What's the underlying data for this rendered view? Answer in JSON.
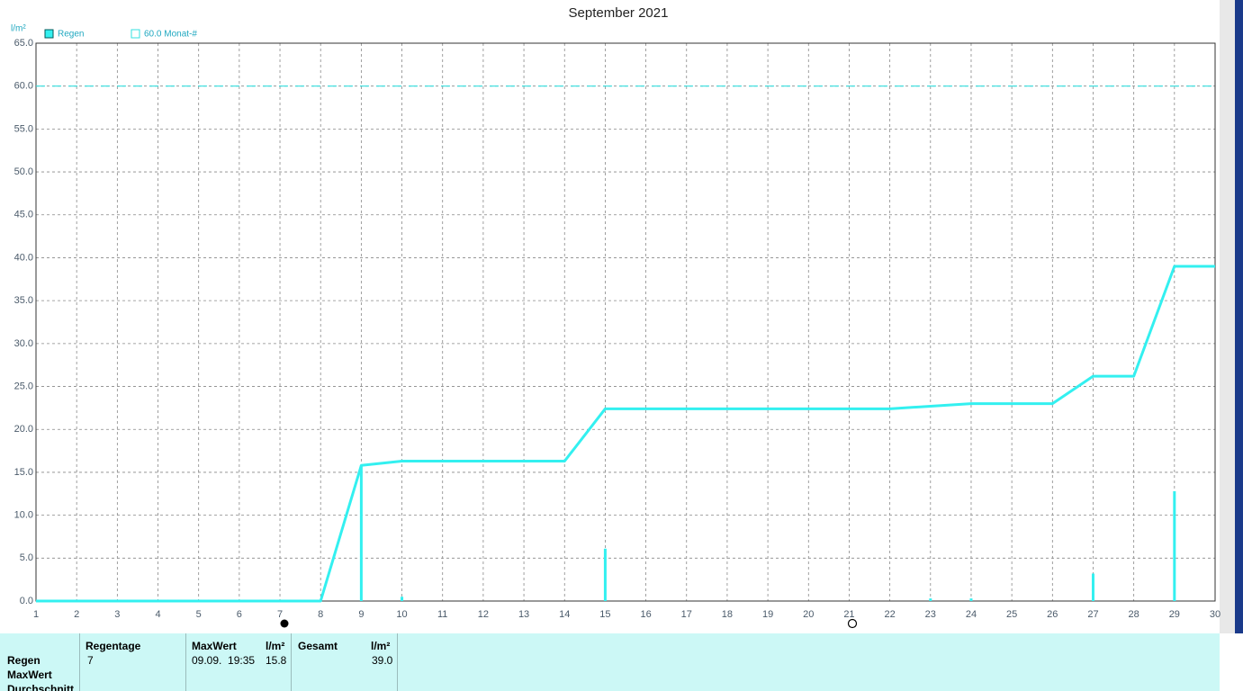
{
  "chart_data": {
    "type": "rain",
    "title": "September 2021",
    "y_label": "l/m²",
    "series": [
      {
        "name": "Regen",
        "color": "#33f0f0",
        "x": [
          9,
          10,
          15,
          23,
          24,
          27,
          29
        ],
        "values": [
          15.8,
          0.5,
          6.1,
          0.3,
          0.3,
          3.2,
          12.8
        ]
      },
      {
        "name": "60.0 Monat-#",
        "color": "#33e0e0",
        "value": 60
      }
    ],
    "line": {
      "color": "#33f0f0",
      "x": [
        1,
        2,
        3,
        4,
        5,
        6,
        7,
        8,
        9,
        10,
        11,
        12,
        13,
        14,
        15,
        16,
        17,
        18,
        19,
        20,
        21,
        22,
        23,
        24,
        25,
        26,
        27,
        28,
        29,
        30
      ],
      "values": [
        0,
        0,
        0,
        0,
        0,
        0,
        0,
        0,
        15.8,
        16.3,
        16.3,
        16.3,
        16.3,
        16.3,
        22.4,
        22.4,
        22.4,
        22.4,
        22.4,
        22.4,
        22.4,
        22.4,
        22.7,
        23.0,
        23.0,
        23.0,
        26.2,
        26.2,
        39.0,
        39.0
      ]
    },
    "xlim": [
      1,
      30
    ],
    "xticks": [
      1,
      2,
      3,
      4,
      5,
      6,
      7,
      8,
      9,
      10,
      11,
      12,
      13,
      14,
      15,
      16,
      17,
      18,
      19,
      20,
      21,
      22,
      23,
      24,
      25,
      26,
      27,
      28,
      29,
      30
    ],
    "ylim": [
      0,
      65
    ],
    "yticks": [
      {
        "value": 0,
        "label": "0.0"
      },
      {
        "value": 5,
        "label": "5.0"
      },
      {
        "value": 10,
        "label": "10.0"
      },
      {
        "value": 15,
        "label": "15.0"
      },
      {
        "value": 20,
        "label": "20.0"
      },
      {
        "value": 25,
        "label": "25.0"
      },
      {
        "value": 30,
        "label": "30.0"
      },
      {
        "value": 35,
        "label": "35.0"
      },
      {
        "value": 40,
        "label": "40.0"
      },
      {
        "value": 45,
        "label": "45.0"
      },
      {
        "value": 50,
        "label": "50.0"
      },
      {
        "value": 55,
        "label": "55.0"
      },
      {
        "value": 60,
        "label": "60.0"
      },
      {
        "value": 65,
        "label": "65.0"
      }
    ],
    "grid": true
  },
  "table": {
    "row_labels": [
      "Regen",
      "MaxWert",
      "Durchschnitt"
    ],
    "headers": [
      "Regentage",
      "MaxWert",
      "l/m²",
      "Gesamt",
      "l/m²"
    ],
    "rows": [
      [
        "7",
        "09.09.  19:35",
        "15.8",
        "39.0"
      ]
    ]
  }
}
